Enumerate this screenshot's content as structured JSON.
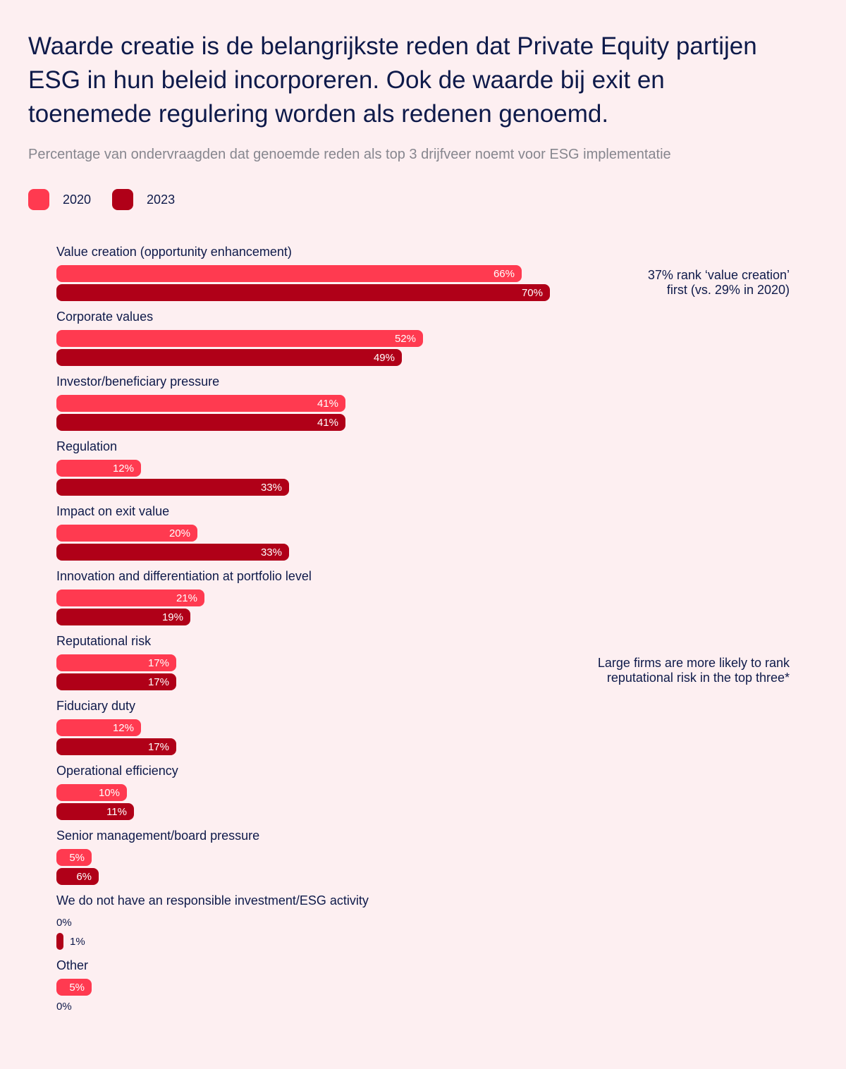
{
  "title": "Waarde creatie is de belangrijkste reden dat Private Equity partijen ESG in hun beleid incorporeren. Ook de waarde bij exit en toenemede regulering worden als redenen genoemd.",
  "subtitle": "Percentage van ondervraagden dat genoemde reden als top 3 drijfveer noemt voor ESG implementatie",
  "colors": {
    "c2020": "#FF3A50",
    "c2023": "#B00018",
    "background": "#FDEFF1",
    "text": "#0E1A4A"
  },
  "chart_data": {
    "type": "bar",
    "orientation": "horizontal",
    "categories": [
      "Value creation (opportunity enhancement)",
      "Corporate values",
      "Investor/beneficiary pressure",
      "Regulation",
      "Impact on exit value",
      "Innovation and differentiation at portfolio level",
      "Reputational risk",
      "Fiduciary duty",
      "Operational efficiency",
      "Senior management/board pressure",
      "We do not have an responsible investment/ESG activity",
      "Other"
    ],
    "series": [
      {
        "name": "2020",
        "values": [
          66,
          52,
          41,
          12,
          20,
          21,
          17,
          12,
          10,
          5,
          0,
          5
        ]
      },
      {
        "name": "2023",
        "values": [
          70,
          49,
          41,
          33,
          33,
          19,
          17,
          17,
          11,
          6,
          1,
          0
        ]
      }
    ],
    "value_suffix": "%",
    "xlim": [
      0,
      100
    ],
    "legend": "top-left",
    "grid": false
  },
  "annotations": [
    {
      "line1": "37% rank ‘value creation’",
      "line2": "first (vs. 29% in 2020)"
    },
    {
      "line1": "Large firms are more likely to rank",
      "line2": "reputational risk in the top three*"
    }
  ]
}
